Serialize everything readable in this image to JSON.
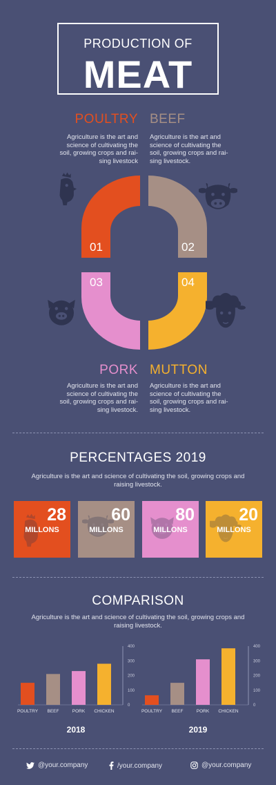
{
  "header": {
    "title_small": "PRODUCTION OF",
    "title_big": "MEAT"
  },
  "categories": [
    {
      "name": "POULTRY",
      "number": "01",
      "color": "#e34f1f",
      "description": "Agriculture is the art and science of cultivating the soil, growing crops and rai-sing livestock",
      "icon": "chicken-icon"
    },
    {
      "name": "BEEF",
      "number": "02",
      "color": "#a68f85",
      "description": "Agriculture is the art and science of cultivating the soil, growing crops and rai-sing livestock.",
      "icon": "cow-icon"
    },
    {
      "name": "PORK",
      "number": "03",
      "color": "#e58fcd",
      "description": "Agriculture is the art and science of cultivating the soil, growing crops and rai-sing livestock.",
      "icon": "pig-icon"
    },
    {
      "name": "MUTTON",
      "number": "04",
      "color": "#f5b12e",
      "description": "Agriculture is the art and science of cultivating the soil, growing crops and rai-sing livestock.",
      "icon": "sheep-icon"
    }
  ],
  "percentages": {
    "title": "PERCENTAGES 2019",
    "subtitle": "Agriculture is the art and science of cultivating the soil, growing crops and raising livestock.",
    "tiles": [
      {
        "value": "28",
        "unit": "MILLONS"
      },
      {
        "value": "60",
        "unit": "MILLONS"
      },
      {
        "value": "80",
        "unit": "MILLONS"
      },
      {
        "value": "20",
        "unit": "MILLONS"
      }
    ]
  },
  "comparison": {
    "title": "COMPARISON",
    "subtitle": "Agriculture is the art and science of cultivating the soil, growing crops and raising livestock."
  },
  "chart_data": [
    {
      "type": "bar",
      "title": "2018",
      "categories": [
        "POULTRY",
        "BEEF",
        "PORK",
        "CHICKEN"
      ],
      "values": [
        150,
        210,
        230,
        280
      ],
      "colors": [
        "#e34f1f",
        "#a68f85",
        "#e58fcd",
        "#f5b12e"
      ],
      "ylim": [
        0,
        400
      ],
      "yticks": [
        0,
        100,
        200,
        300,
        400
      ],
      "ytick_labels": [
        "0",
        "100",
        "200",
        "300",
        "400"
      ],
      "grid": false
    },
    {
      "type": "bar",
      "title": "2019",
      "categories": [
        "POULTRY",
        "BEEF",
        "PORK",
        "CHICKEN"
      ],
      "values": [
        65,
        150,
        310,
        385
      ],
      "colors": [
        "#e34f1f",
        "#a68f85",
        "#e58fcd",
        "#f5b12e"
      ],
      "ylim": [
        0,
        400
      ],
      "yticks": [
        0,
        100,
        200,
        300,
        400
      ],
      "ytick_labels": [
        "0",
        "100",
        "200",
        "300",
        "400"
      ],
      "grid": false
    }
  ],
  "footer": {
    "twitter": "@your.company",
    "facebook": "/your.company",
    "instagram": "@your.company"
  }
}
